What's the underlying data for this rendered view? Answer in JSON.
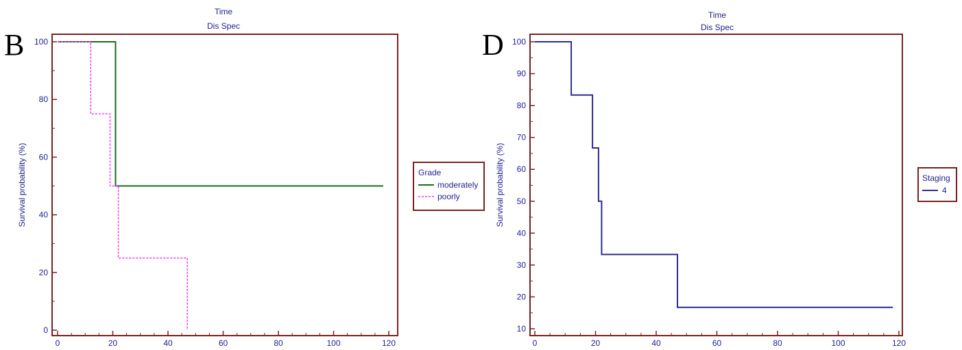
{
  "chart_data": [
    {
      "panel": "B",
      "type": "line",
      "step": true,
      "title": "Time",
      "subtitle": "Dis Spec",
      "xlabel": "",
      "ylabel": "Survival probability (%)",
      "xlim": [
        0,
        120
      ],
      "ylim": [
        0,
        100
      ],
      "xticks": [
        0,
        20,
        40,
        60,
        80,
        100,
        120
      ],
      "yticks": [
        0,
        20,
        40,
        60,
        80,
        100
      ],
      "grid": false,
      "legend": {
        "title": "Grade",
        "placement": "right"
      },
      "series": [
        {
          "name": "moderately",
          "color": "#1a6b1a",
          "dash": false,
          "x": [
            0,
            21,
            21,
            118
          ],
          "y": [
            100,
            100,
            50,
            50
          ]
        },
        {
          "name": "poorly",
          "color": "#ff33ff",
          "dash": true,
          "x": [
            0,
            12,
            12,
            19,
            19,
            22,
            22,
            47,
            47
          ],
          "y": [
            100,
            100,
            75,
            75,
            50,
            50,
            25,
            25,
            0
          ]
        }
      ]
    },
    {
      "panel": "D",
      "type": "line",
      "step": true,
      "title": "Time",
      "subtitle": "Dis Spec",
      "xlabel": "",
      "ylabel": "Survival probability (%)",
      "xlim": [
        0,
        120
      ],
      "ylim": [
        10,
        100
      ],
      "xticks": [
        0,
        20,
        40,
        60,
        80,
        100,
        120
      ],
      "yticks": [
        10,
        20,
        30,
        40,
        50,
        60,
        70,
        80,
        90,
        100
      ],
      "grid": false,
      "legend": {
        "title": "Staging",
        "placement": "right"
      },
      "series": [
        {
          "name": "4",
          "color": "#2b2b8f",
          "dash": false,
          "x": [
            0,
            12,
            12,
            19,
            19,
            21,
            21,
            22,
            22,
            47,
            47,
            118
          ],
          "y": [
            100,
            100,
            83.3,
            83.3,
            66.7,
            66.7,
            50,
            50,
            33.3,
            33.3,
            16.7,
            16.7
          ]
        }
      ]
    }
  ]
}
